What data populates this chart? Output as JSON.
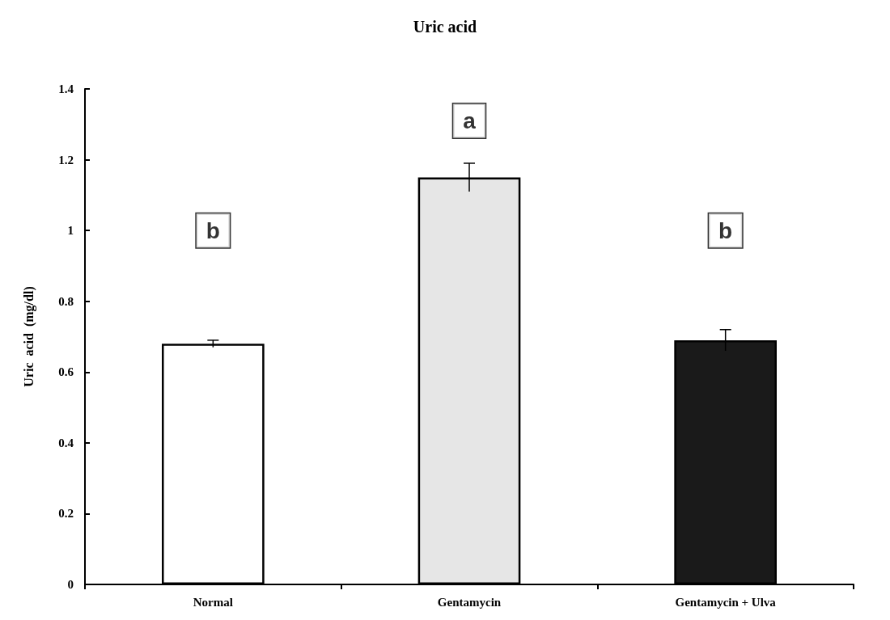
{
  "chart_data": {
    "type": "bar",
    "title": "Uric acid",
    "ylabel": "Uric  acid  (mg/dl)",
    "categories": [
      "Normal",
      "Gentamycin",
      "Gentamycin + Ulva"
    ],
    "values": [
      0.68,
      1.15,
      0.69
    ],
    "errors": [
      0.01,
      0.04,
      0.03
    ],
    "colors": [
      "#ffffff",
      "#e6e6e6",
      "#1a1a1a"
    ],
    "ylim": [
      0,
      1.4
    ],
    "yticks": [
      0,
      0.2,
      0.4,
      0.6,
      0.8,
      1,
      1.2,
      1.4
    ],
    "grid": false,
    "annotations": [
      {
        "text": "b",
        "x": "Normal",
        "y": 1.0
      },
      {
        "text": "a",
        "x": "Gentamycin",
        "y": 1.31
      },
      {
        "text": "b",
        "x": "Gentamycin + Ulva",
        "y": 1.0
      }
    ]
  }
}
